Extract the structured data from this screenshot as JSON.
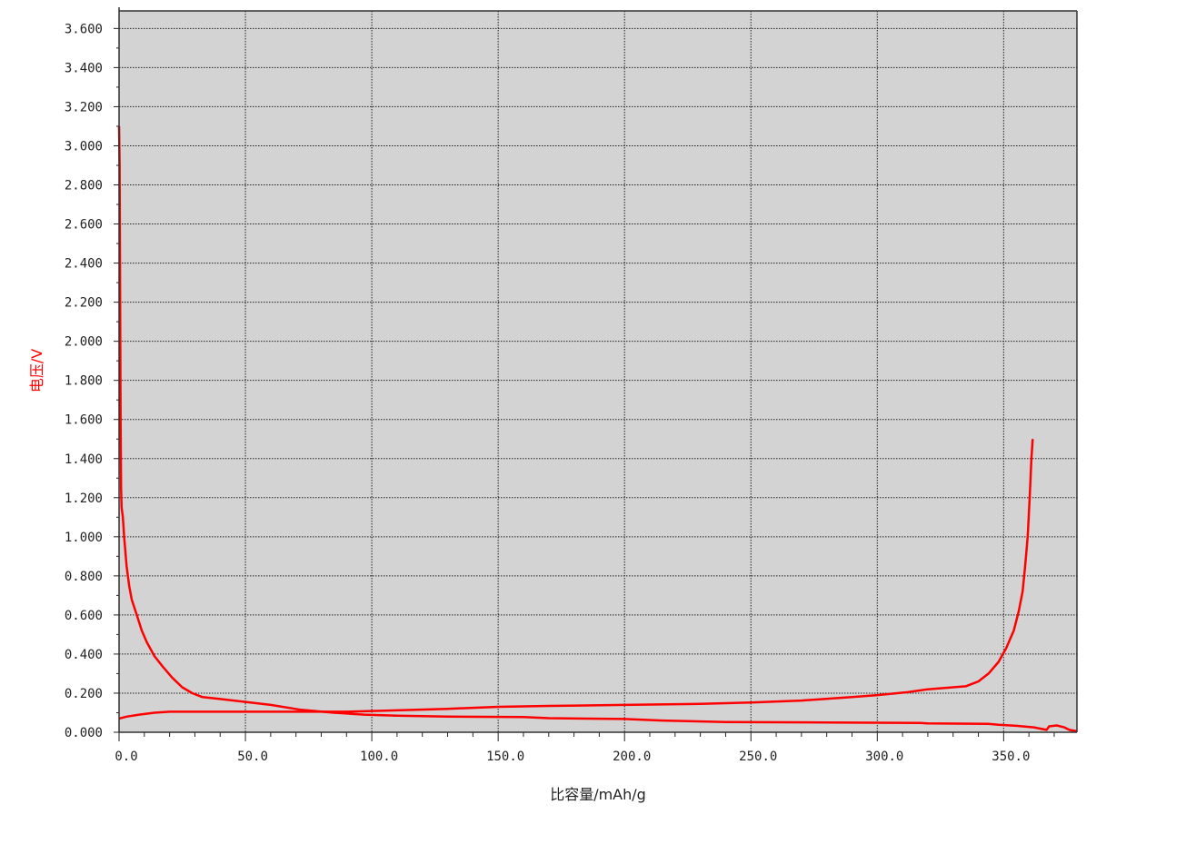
{
  "chart_data": {
    "type": "line",
    "xlabel": "比容量/mAh/g",
    "ylabel": "电压/V",
    "xlim": [
      0,
      379
    ],
    "ylim": [
      0,
      3.69
    ],
    "x_ticks": [
      "0.0",
      "50.0",
      "100.0",
      "150.0",
      "200.0",
      "250.0",
      "300.0",
      "350.0"
    ],
    "y_ticks": [
      "0.000",
      "0.200",
      "0.400",
      "0.600",
      "0.800",
      "1.000",
      "1.200",
      "1.400",
      "1.600",
      "1.800",
      "2.000",
      "2.200",
      "2.400",
      "2.600",
      "2.800",
      "3.000",
      "3.200",
      "3.400",
      "3.600"
    ],
    "grid": true,
    "colors": {
      "plot_background": "#d3d3d3",
      "line": "#ff0000",
      "ylabel": "#ff0000"
    },
    "series": [
      {
        "points": [
          [
            0,
            3.1
          ],
          [
            0.2,
            2.9
          ],
          [
            0.4,
            2.3
          ],
          [
            0.6,
            1.6
          ],
          [
            0.8,
            1.25
          ],
          [
            1,
            1.15
          ],
          [
            1.5,
            1.1
          ],
          [
            2,
            1.0
          ],
          [
            3,
            0.85
          ],
          [
            4,
            0.75
          ],
          [
            5,
            0.68
          ],
          [
            7,
            0.6
          ],
          [
            9,
            0.52
          ],
          [
            11,
            0.46
          ],
          [
            14,
            0.39
          ],
          [
            17,
            0.34
          ],
          [
            21,
            0.28
          ],
          [
            25,
            0.23
          ],
          [
            29,
            0.2
          ],
          [
            33,
            0.18
          ],
          [
            40,
            0.17
          ],
          [
            50,
            0.155
          ],
          [
            60,
            0.14
          ],
          [
            72,
            0.115
          ],
          [
            85,
            0.1
          ],
          [
            97,
            0.09
          ],
          [
            110,
            0.085
          ],
          [
            130,
            0.08
          ],
          [
            160,
            0.078
          ],
          [
            170,
            0.072
          ],
          [
            200,
            0.068
          ],
          [
            215,
            0.06
          ],
          [
            240,
            0.052
          ],
          [
            280,
            0.05
          ],
          [
            317,
            0.048
          ],
          [
            320,
            0.045
          ],
          [
            344,
            0.043
          ],
          [
            348,
            0.038
          ],
          [
            355,
            0.033
          ],
          [
            362,
            0.025
          ],
          [
            367,
            0.012
          ],
          [
            368,
            0.03
          ],
          [
            371,
            0.035
          ],
          [
            374,
            0.025
          ],
          [
            376,
            0.012
          ],
          [
            379,
            0.005
          ]
        ]
      },
      {
        "points": [
          [
            0,
            0.07
          ],
          [
            3,
            0.08
          ],
          [
            8,
            0.09
          ],
          [
            14,
            0.1
          ],
          [
            20,
            0.105
          ],
          [
            50,
            0.105
          ],
          [
            90,
            0.105
          ],
          [
            105,
            0.11
          ],
          [
            130,
            0.12
          ],
          [
            150,
            0.13
          ],
          [
            170,
            0.135
          ],
          [
            200,
            0.14
          ],
          [
            230,
            0.145
          ],
          [
            250,
            0.152
          ],
          [
            270,
            0.162
          ],
          [
            290,
            0.18
          ],
          [
            300,
            0.19
          ],
          [
            312,
            0.205
          ],
          [
            320,
            0.22
          ],
          [
            335,
            0.235
          ],
          [
            340,
            0.26
          ],
          [
            344,
            0.3
          ],
          [
            348,
            0.36
          ],
          [
            351,
            0.43
          ],
          [
            354,
            0.52
          ],
          [
            356,
            0.62
          ],
          [
            357.5,
            0.72
          ],
          [
            358.5,
            0.85
          ],
          [
            359.5,
            1.0
          ],
          [
            360.3,
            1.2
          ],
          [
            361,
            1.4
          ],
          [
            361.5,
            1.5
          ]
        ]
      }
    ]
  }
}
